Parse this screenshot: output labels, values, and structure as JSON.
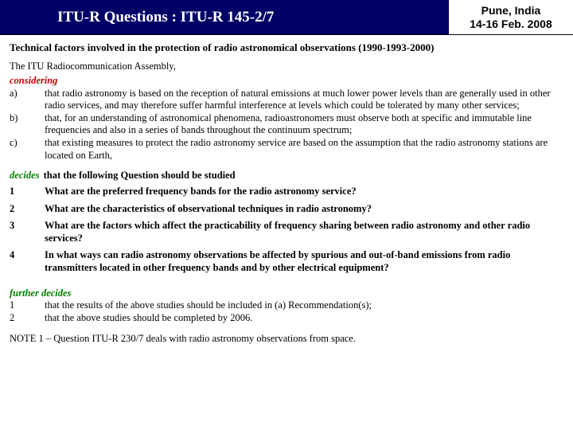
{
  "header": {
    "title": "ITU-R Questions : ITU-R 145-2/7",
    "location": "Pune, India",
    "date": "14-16 Feb. 2008"
  },
  "subtitle": "Technical factors involved in the protection of radio astronomical observations (1990-1993-2000)",
  "intro": "The ITU Radiocommunication Assembly,",
  "considering": {
    "label": "considering",
    "items": [
      {
        "marker": "a)",
        "text": "that radio astronomy is based on the reception of natural emissions at much lower power levels than are generally used in other radio services, and may therefore suffer harmful interference at levels which could be tolerated by many other services;"
      },
      {
        "marker": "b)",
        "text": "that, for an understanding of astronomical phenomena, radioastronomers must observe both at specific and immutable line frequencies and also in a series of bands throughout the continuum spectrum;"
      },
      {
        "marker": "c)",
        "text": "that existing measures to protect the radio astronomy service are based on the assumption that the radio astronomy stations are located on Earth,"
      }
    ]
  },
  "decides": {
    "label": "decides",
    "tail": " that the following Question should be studied",
    "items": [
      {
        "marker": "1",
        "text": "What are the preferred frequency bands for the radio astronomy service?"
      },
      {
        "marker": "2",
        "text": "What are the characteristics of observational techniques in radio astronomy?"
      },
      {
        "marker": "3",
        "text": "What are the factors which affect the practicability of frequency sharing between radio astronomy and other radio services?"
      },
      {
        "marker": "4",
        "text": "In what ways can radio astronomy observations be affected by spurious and out-of-band emissions from radio transmitters located in other frequency bands and by other electrical equipment?"
      }
    ]
  },
  "further": {
    "label": "further decides",
    "items": [
      {
        "marker": "1",
        "text": "that the results of the above studies should be included in (a) Recommendation(s);"
      },
      {
        "marker": "2",
        "text": "that the above studies should be completed by 2006."
      }
    ]
  },
  "note": "NOTE 1 – Question ITU-R 230/7 deals with radio astronomy observations from space."
}
